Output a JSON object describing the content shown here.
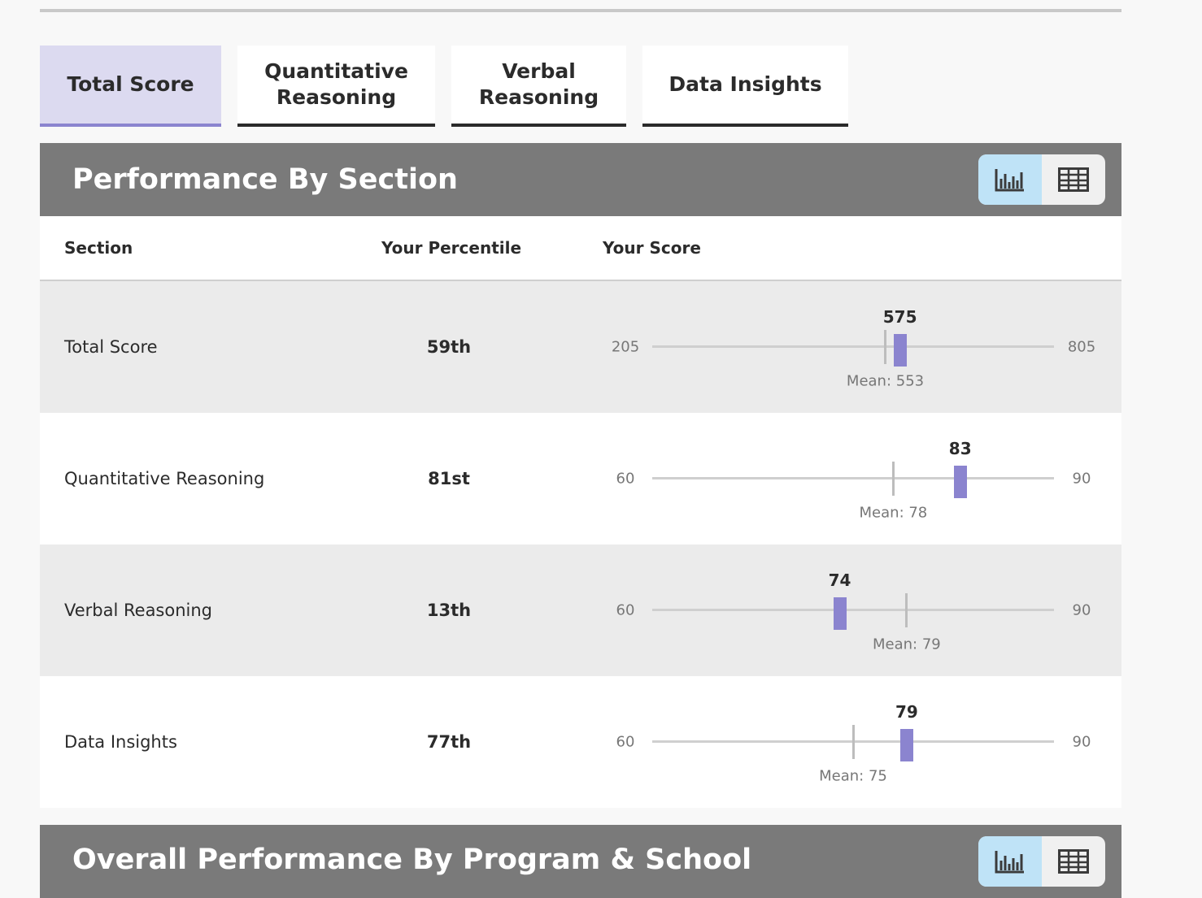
{
  "tabs": [
    "Total Score",
    "Quantitative Reasoning",
    "Verbal Reasoning",
    "Data Insights"
  ],
  "section": {
    "title": "Performance By Section",
    "columns": [
      "Section",
      "Your Percentile",
      "Your Score"
    ],
    "rows": [
      {
        "name": "Total Score",
        "percentile": "59th",
        "score": 575,
        "min": 205,
        "max": 805,
        "mean": {
          "value": 553,
          "label": "Mean: 553"
        }
      },
      {
        "name": "Quantitative Reasoning",
        "percentile": "81st",
        "score": 83,
        "min": 60,
        "max": 90,
        "mean": {
          "value": 78,
          "label": "Mean: 78"
        }
      },
      {
        "name": "Verbal Reasoning",
        "percentile": "13th",
        "score": 74,
        "min": 60,
        "max": 90,
        "mean": {
          "value": 79,
          "label": "Mean: 79"
        }
      },
      {
        "name": "Data Insights",
        "percentile": "77th",
        "score": 79,
        "min": 60,
        "max": 90,
        "mean": {
          "value": 75,
          "label": "Mean: 75"
        }
      }
    ]
  },
  "next_section": {
    "title": "Overall Performance By Program & School"
  }
}
